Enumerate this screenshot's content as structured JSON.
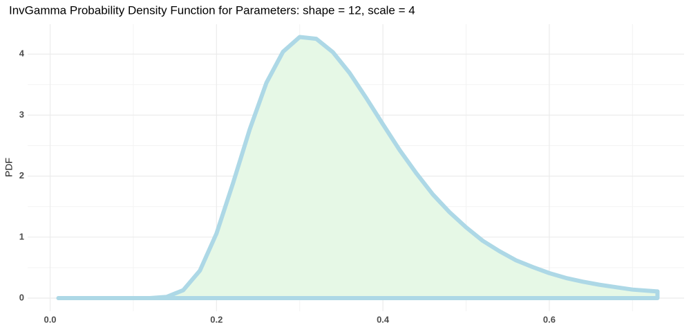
{
  "chart_data": {
    "type": "area",
    "title": "InvGamma Probability Density Function for Parameters:  shape = 12, scale = 4",
    "y_label": "PDF",
    "x": [
      0.01,
      0.04,
      0.07,
      0.1,
      0.12,
      0.14,
      0.16,
      0.18,
      0.2,
      0.22,
      0.24,
      0.26,
      0.28,
      0.3,
      0.32,
      0.34,
      0.36,
      0.38,
      0.4,
      0.42,
      0.44,
      0.46,
      0.48,
      0.5,
      0.52,
      0.54,
      0.56,
      0.58,
      0.6,
      0.62,
      0.64,
      0.66,
      0.68,
      0.7,
      0.72,
      0.73
    ],
    "values": [
      0,
      0,
      0,
      0,
      0.001,
      0.02,
      0.13,
      0.45,
      1.06,
      1.89,
      2.77,
      3.53,
      4.04,
      4.28,
      4.25,
      4.03,
      3.69,
      3.28,
      2.85,
      2.43,
      2.05,
      1.7,
      1.41,
      1.16,
      0.94,
      0.77,
      0.62,
      0.51,
      0.41,
      0.33,
      0.27,
      0.22,
      0.18,
      0.14,
      0.12,
      0.11
    ],
    "line_color": "#add8e6",
    "fill_color": "#e6f8e6",
    "xlim": [
      -0.027,
      0.762
    ],
    "xticks": [
      {
        "value": 0,
        "label": "0.0"
      },
      0.2,
      0.4,
      0.6
    ],
    "ylim": [
      -0.215,
      4.49
    ],
    "yticks": [
      0,
      1,
      2,
      3,
      4
    ],
    "grid": true
  }
}
